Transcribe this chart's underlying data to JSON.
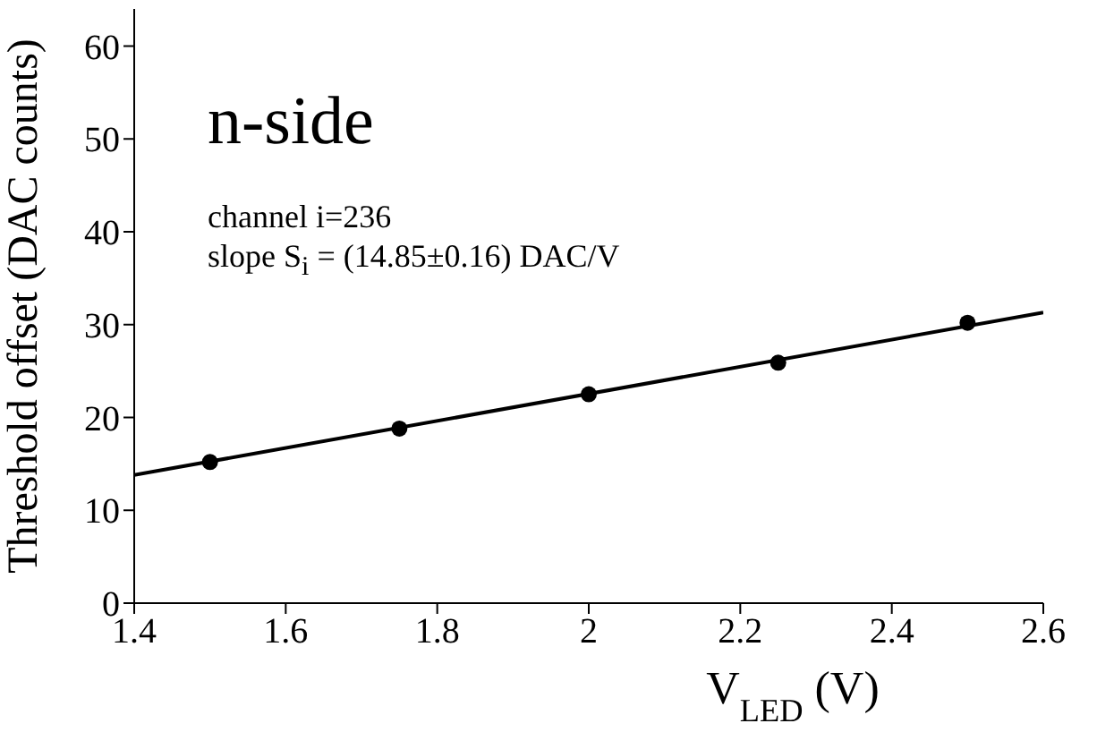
{
  "chart_data": {
    "type": "scatter",
    "xlabel": "V$_{LED}$ (V)",
    "ylabel": "Threshold offset (DAC counts)",
    "annotations": [
      "n-side",
      "channel i=236",
      "slope S$_{i}$ = (14.85±0.16) DAC/V"
    ],
    "series": [
      {
        "x": [
          1.5,
          1.75,
          2.0,
          2.25,
          2.5
        ],
        "values": [
          15.2,
          18.8,
          22.5,
          25.9,
          30.2
        ],
        "color": "#000000",
        "marker": "circle"
      },
      {
        "type": "line",
        "x": [
          1.4,
          2.6
        ],
        "values": [
          13.8,
          31.3
        ],
        "color": "#000000",
        "marker": "none",
        "line_style": "solid"
      }
    ],
    "xlim": [
      1.4,
      2.6
    ],
    "xticks": [
      1.4,
      1.6,
      1.8,
      2,
      2.2,
      2.4,
      2.6
    ],
    "ylim": [
      0,
      64
    ],
    "yticks": [
      0,
      10,
      20,
      30,
      40,
      50,
      60
    ]
  }
}
